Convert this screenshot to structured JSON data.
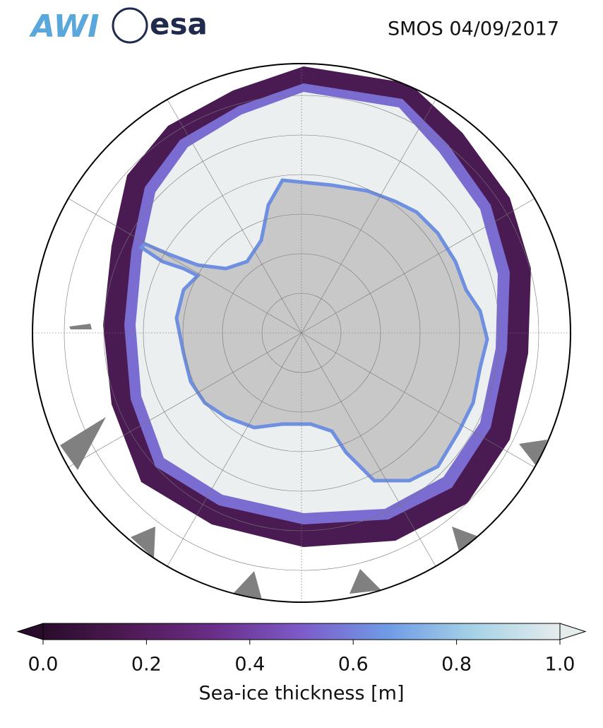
{
  "header": {
    "logos": [
      "AWI",
      "esa"
    ],
    "title": "SMOS 04/09/2017"
  },
  "colorbar": {
    "label": "Sea-ice thickness [m]",
    "lim": [
      0,
      1
    ],
    "ticks": [
      {
        "value": 0,
        "label": "0.0"
      },
      {
        "value": 0.2,
        "label": "0.2"
      },
      {
        "value": 0.4,
        "label": "0.4"
      },
      {
        "value": 0.6,
        "label": "0.6"
      },
      {
        "value": 0.8,
        "label": "0.8"
      },
      {
        "value": 1,
        "label": "1.0"
      }
    ],
    "colors": [
      "#2a0c2c",
      "#4f1a55",
      "#6a2f8a",
      "#7d5bc9",
      "#6f9be6",
      "#a6d2e6",
      "#e5ecec"
    ]
  }
}
